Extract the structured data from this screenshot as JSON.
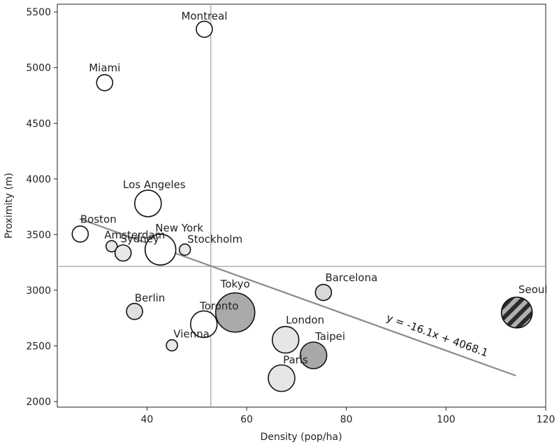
{
  "chart_data": {
    "type": "scatter",
    "xlabel": "Density (pop/ha)",
    "ylabel": "Proximity (m)",
    "xlim": [
      22,
      120
    ],
    "ylim": [
      1950,
      5570
    ],
    "xticks": [
      "40",
      "60",
      "80",
      "100",
      "120"
    ],
    "yticks": [
      "2000",
      "2500",
      "3000",
      "3500",
      "4000",
      "4500",
      "5000",
      "5500"
    ],
    "grid": false,
    "reference_lines": {
      "x": 52.8,
      "y": 3215
    },
    "trendline": {
      "label": "y = -16.1x + 4068.1",
      "slope": -16.1,
      "intercept": 4068.1,
      "x_start": 26.5,
      "x_end": 114
    },
    "points": [
      {
        "name": "Montreal",
        "x": 51.5,
        "y": 5345,
        "size": "small",
        "fill": "#ffffff"
      },
      {
        "name": "Miami",
        "x": 31.5,
        "y": 4865,
        "size": "small",
        "fill": "#ffffff"
      },
      {
        "name": "Los Angeles",
        "x": 40.2,
        "y": 3780,
        "size": "medium",
        "fill": "#ffffff"
      },
      {
        "name": "Boston",
        "x": 26.6,
        "y": 3505,
        "size": "small",
        "fill": "#ffffff"
      },
      {
        "name": "Amsterdam",
        "x": 32.9,
        "y": 3395,
        "size": "tiny",
        "fill": "#e8e8e8"
      },
      {
        "name": "Sydney",
        "x": 35.2,
        "y": 3335,
        "size": "small",
        "fill": "#e8e8e8"
      },
      {
        "name": "New York",
        "x": 42.7,
        "y": 3365,
        "size": "large",
        "fill": "#ffffff"
      },
      {
        "name": "Stockholm",
        "x": 47.6,
        "y": 3365,
        "size": "tiny",
        "fill": "#e8e8e8"
      },
      {
        "name": "Barcelona",
        "x": 75.4,
        "y": 2980,
        "size": "small",
        "fill": "#d9d9d9"
      },
      {
        "name": "Tokyo",
        "x": 57.7,
        "y": 2800,
        "size": "xlarge",
        "fill": "#aaaaaa"
      },
      {
        "name": "Berlin",
        "x": 37.5,
        "y": 2810,
        "size": "small",
        "fill": "#e0e0e0"
      },
      {
        "name": "Toronto",
        "x": 51.4,
        "y": 2695,
        "size": "medium",
        "fill": "#ffffff"
      },
      {
        "name": "Vienna",
        "x": 45.0,
        "y": 2505,
        "size": "tiny",
        "fill": "#e8e8e8"
      },
      {
        "name": "London",
        "x": 67.8,
        "y": 2555,
        "size": "medium",
        "fill": "#e6e6e6"
      },
      {
        "name": "Taipei",
        "x": 73.4,
        "y": 2415,
        "size": "medium",
        "fill": "#a8a8a8"
      },
      {
        "name": "Paris",
        "x": 67.0,
        "y": 2210,
        "size": "medium",
        "fill": "#e6e6e6"
      },
      {
        "name": "Seoul",
        "x": 114.2,
        "y": 2800,
        "size": "large",
        "fill": "#b0b0b0",
        "pattern": "hatched"
      }
    ]
  }
}
